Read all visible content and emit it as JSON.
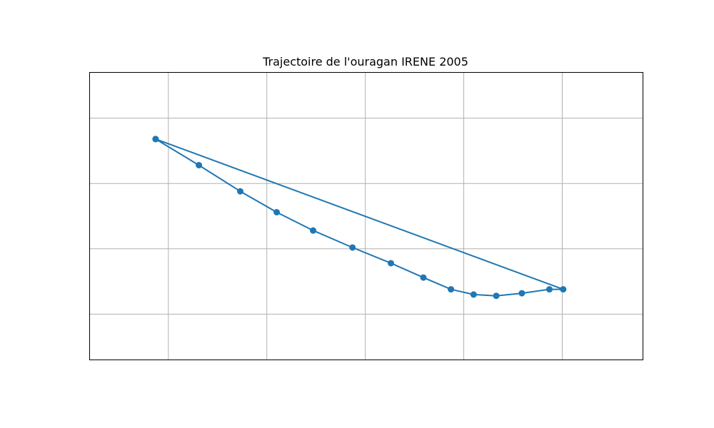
{
  "chart_data": {
    "type": "line",
    "title": "Trajectoire de l'ouragan IRENE 2005",
    "xlabel": "",
    "ylabel": "",
    "xlim": [
      -84.3,
      -28.1
    ],
    "ylim": [
      20.5,
      42.5
    ],
    "x_gridlines": [
      -76.3,
      -66.3,
      -56.3,
      -46.3,
      -36.3
    ],
    "y_gridlines": [
      24.0,
      29.0,
      34.0,
      39.0
    ],
    "grid": true,
    "series": [
      {
        "marker": "circle",
        "color": "#1f77b4",
        "x": [
          -77.6,
          -73.2,
          -69.0,
          -65.3,
          -61.6,
          -57.6,
          -53.7,
          -50.4,
          -47.6,
          -45.3,
          -43.0,
          -40.4,
          -37.6,
          -36.2,
          -77.6
        ],
        "y": [
          37.4,
          35.4,
          33.4,
          31.8,
          30.4,
          29.1,
          27.9,
          26.8,
          25.9,
          25.5,
          25.4,
          25.6,
          25.9,
          25.9,
          37.4
        ]
      }
    ]
  }
}
